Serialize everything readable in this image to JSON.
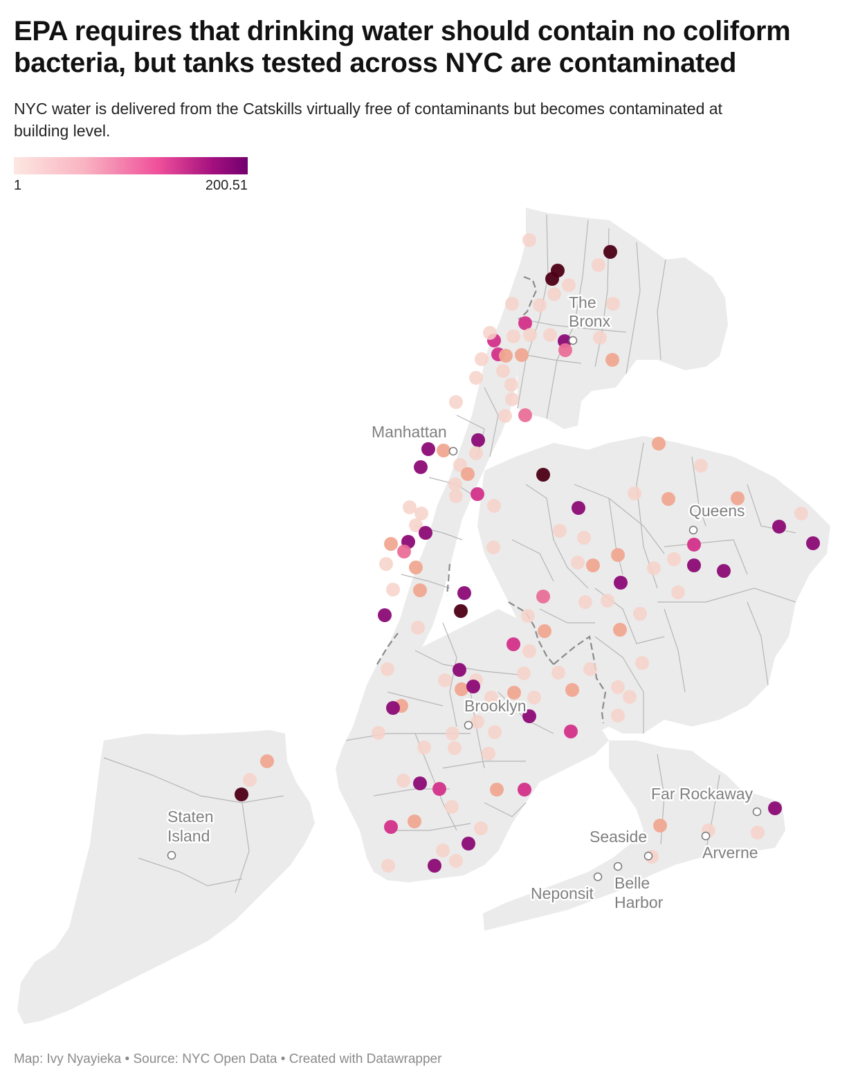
{
  "title": "EPA requires that drinking water should contain no coliform bacteria, but tanks tested across NYC are contaminated",
  "subtitle": "NYC water is delivered from the Catskills virtually free of contaminants but becomes contaminated at building level.",
  "legend": {
    "min_label": "1",
    "max_label": "200.51",
    "colors": [
      "#fde7e1",
      "#f9b4c2",
      "#ef4f9a",
      "#a3107e",
      "#71006e"
    ]
  },
  "places": {
    "bronx": [
      "The",
      "Bronx"
    ],
    "manhattan": "Manhattan",
    "queens": "Queens",
    "brooklyn": "Brooklyn",
    "staten_island": [
      "Staten",
      "Island"
    ],
    "far_rockaway": "Far Rockaway",
    "seaside": "Seaside",
    "arverne": "Arverne",
    "neponsit": "Neponsit",
    "belle_harbor": [
      "Belle",
      "Harbor"
    ]
  },
  "footer": {
    "map": "Map: Ivy Nyayieka",
    "source": "Source: NYC Open Data",
    "created": "Created with Datawrapper",
    "separator": " • "
  },
  "colors": {
    "land": "#ebebeb",
    "boundary": "#b5b5b5",
    "borough_line": "#8a8a8a"
  }
}
